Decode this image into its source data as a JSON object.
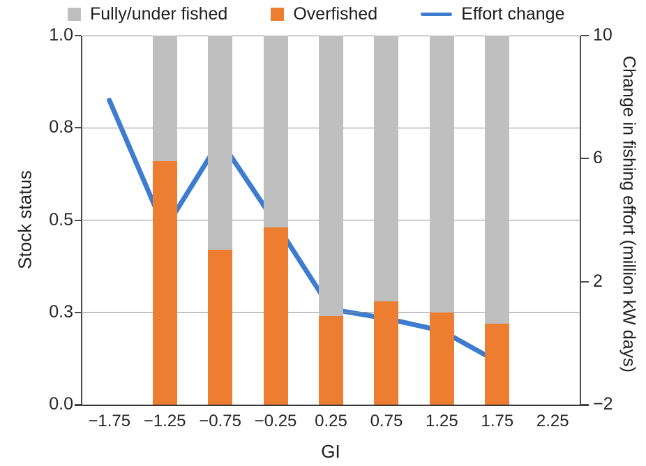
{
  "legend": {
    "items": [
      {
        "label": "Fully/under fished",
        "color": "#BFBFBF",
        "swatch": "square",
        "icon_name": "gray-square-swatch"
      },
      {
        "label": "Overfished",
        "color": "#ED7D31",
        "swatch": "square",
        "icon_name": "orange-square-swatch"
      },
      {
        "label": "Effort change",
        "color": "#3D7CCE",
        "swatch": "line",
        "icon_name": "blue-line-swatch"
      }
    ]
  },
  "chart_data": {
    "type": "bar+line",
    "title": "",
    "categories": [
      "−1.75",
      "−1.25",
      "−0.75",
      "−0.25",
      "0.25",
      "0.75",
      "1.25",
      "1.75",
      "2.25"
    ],
    "series": [
      {
        "name": "Overfished",
        "type": "bar",
        "stack": "stock",
        "axis": "left",
        "color": "#ED7D31",
        "values": [
          null,
          0.66,
          0.42,
          0.48,
          0.24,
          0.28,
          0.25,
          0.22,
          null
        ]
      },
      {
        "name": "Fully/under fished",
        "type": "bar",
        "stack": "stock",
        "axis": "left",
        "color": "#BFBFBF",
        "values": [
          null,
          0.34,
          0.58,
          0.52,
          0.76,
          0.72,
          0.75,
          0.78,
          null
        ]
      },
      {
        "name": "Effort change",
        "type": "line",
        "axis": "right",
        "color": "#3D7CCE",
        "values": [
          7.9,
          3.7,
          6.6,
          3.9,
          1.1,
          0.8,
          0.4,
          -0.6,
          null
        ]
      }
    ],
    "left_axis": {
      "title": "Stock status",
      "range": [
        0,
        1
      ],
      "tick_labels_bottom_up": [
        "0.0",
        "0.3",
        "0.5",
        "0.8",
        "1.0"
      ]
    },
    "right_axis": {
      "title": "Change in fishing effort (million kW days)",
      "range": [
        -2,
        10
      ],
      "tick_labels_bottom_up": [
        "−2",
        "2",
        "6",
        "10"
      ]
    },
    "x_axis": {
      "title": "GI"
    },
    "grid": "horizontal",
    "legend_position": "top",
    "colors": {
      "bar_overfished": "#ED7D31",
      "bar_fully_fished": "#BFBFBF",
      "line_effort": "#3D7CCE",
      "gridline": "#8C8C8C",
      "axis": "#4A4A4A",
      "text": "#1F1F1F"
    }
  }
}
